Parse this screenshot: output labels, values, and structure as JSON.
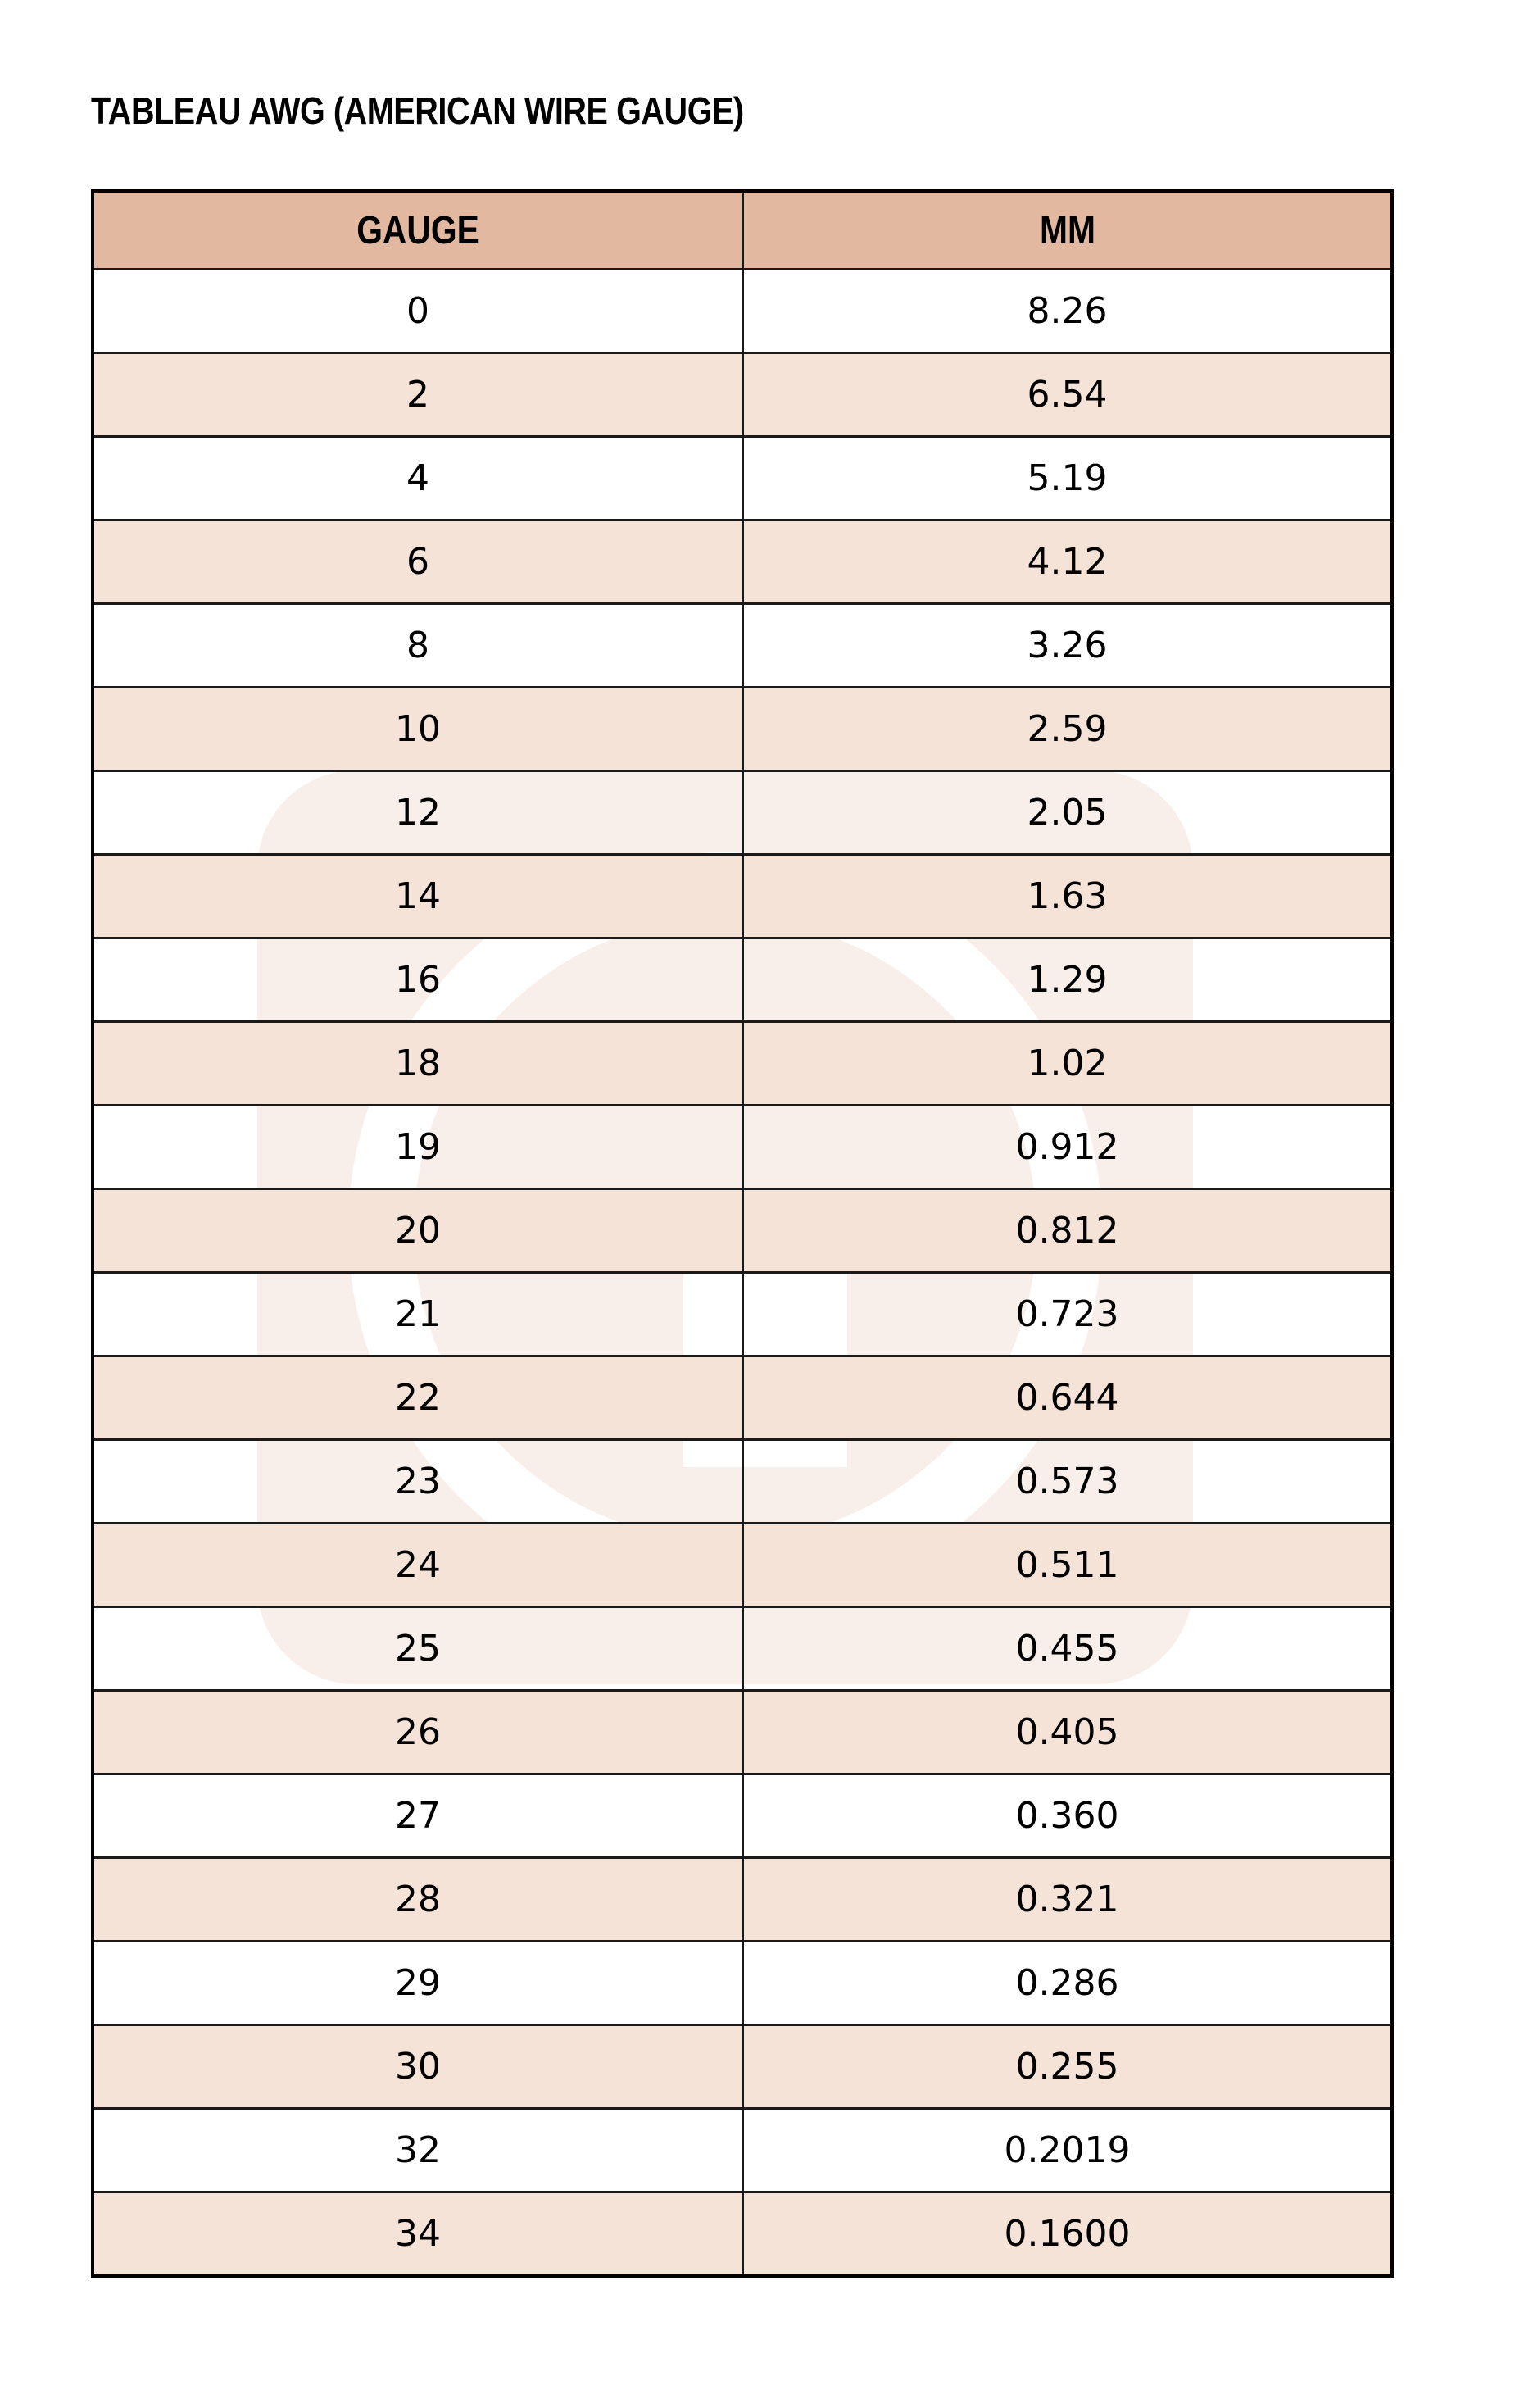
{
  "title": "TABLEAU AWG (AMERICAN WIRE GAUGE)",
  "colors": {
    "header_bg": "#e3b8a0",
    "alt_row_bg": "#f5e3d8",
    "border": "#000000"
  },
  "watermark_icon": "G-logo",
  "table": {
    "headers": [
      "GAUGE",
      "MM"
    ],
    "rows": [
      [
        "0",
        "8.26"
      ],
      [
        "2",
        "6.54"
      ],
      [
        "4",
        "5.19"
      ],
      [
        "6",
        "4.12"
      ],
      [
        "8",
        "3.26"
      ],
      [
        "10",
        "2.59"
      ],
      [
        "12",
        "2.05"
      ],
      [
        "14",
        "1.63"
      ],
      [
        "16",
        "1.29"
      ],
      [
        "18",
        "1.02"
      ],
      [
        "19",
        "0.912"
      ],
      [
        "20",
        "0.812"
      ],
      [
        "21",
        "0.723"
      ],
      [
        "22",
        "0.644"
      ],
      [
        "23",
        "0.573"
      ],
      [
        "24",
        "0.511"
      ],
      [
        "25",
        "0.455"
      ],
      [
        "26",
        "0.405"
      ],
      [
        "27",
        "0.360"
      ],
      [
        "28",
        "0.321"
      ],
      [
        "29",
        "0.286"
      ],
      [
        "30",
        "0.255"
      ],
      [
        "32",
        "0.2019"
      ],
      [
        "34",
        "0.1600"
      ]
    ]
  }
}
